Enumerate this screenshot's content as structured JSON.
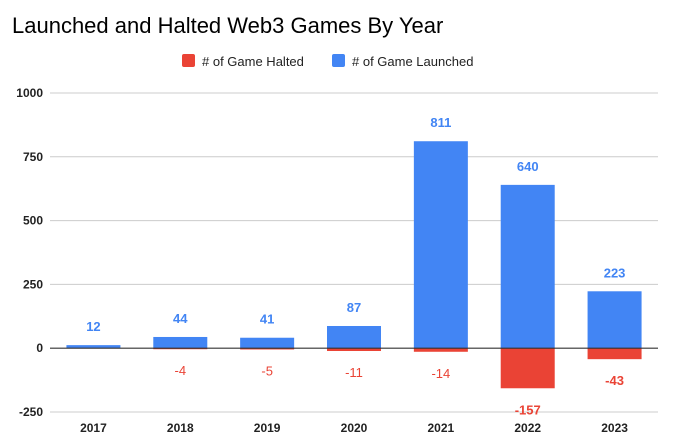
{
  "chart_data": {
    "type": "bar",
    "title": "Launched and Halted Web3 Games By Year",
    "categories": [
      "2017",
      "2018",
      "2019",
      "2020",
      "2021",
      "2022",
      "2023"
    ],
    "series": [
      {
        "name": "# of Game Halted",
        "color": "#ea4335",
        "values": [
          0,
          -4,
          -5,
          -11,
          -14,
          -157,
          -43
        ],
        "labels": [
          null,
          "-4",
          "-5",
          "-11",
          "-14",
          "-157",
          "-43"
        ]
      },
      {
        "name": "# of Game Launched",
        "color": "#4285f4",
        "values": [
          12,
          44,
          41,
          87,
          811,
          640,
          223
        ],
        "labels": [
          "12",
          "44",
          "41",
          "87",
          "811",
          "640",
          "223"
        ]
      }
    ],
    "ylim": [
      -250,
      1000
    ],
    "yticks": [
      -250,
      0,
      250,
      500,
      750,
      1000
    ],
    "ytick_labels": [
      "-250",
      "0",
      "250",
      "500",
      "750",
      "1000"
    ],
    "legend_position": "top-center",
    "grid": true
  }
}
